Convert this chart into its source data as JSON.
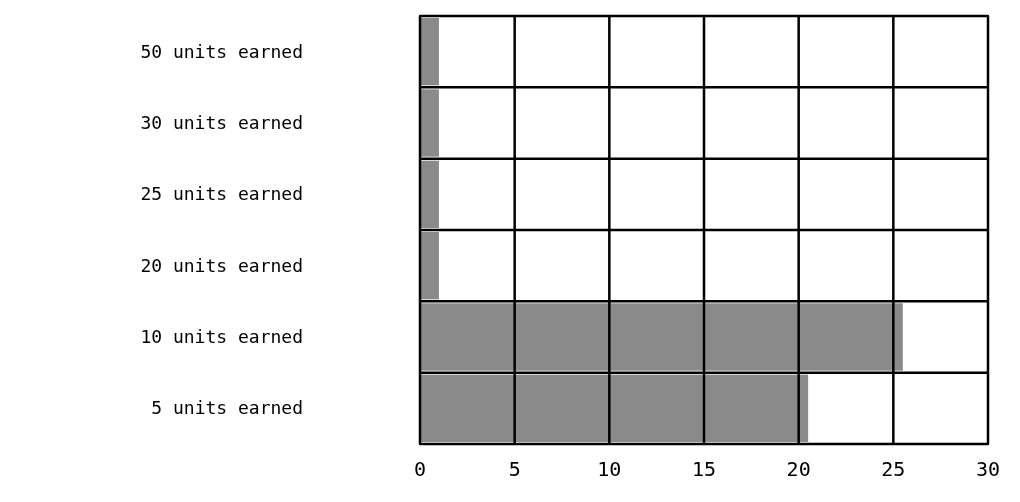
{
  "chart_data": {
    "type": "bar",
    "orientation": "horizontal",
    "categories": [
      "50 units earned",
      "30 units earned",
      "25 units earned",
      "20 units earned",
      "10 units earned",
      "5 units earned"
    ],
    "values": [
      1,
      1,
      1,
      1,
      25.5,
      20.5
    ],
    "color": "#8a8a8a",
    "xlim": [
      0,
      30
    ],
    "xticks": [
      0,
      5,
      10,
      15,
      20,
      25,
      30
    ],
    "grid": true
  }
}
